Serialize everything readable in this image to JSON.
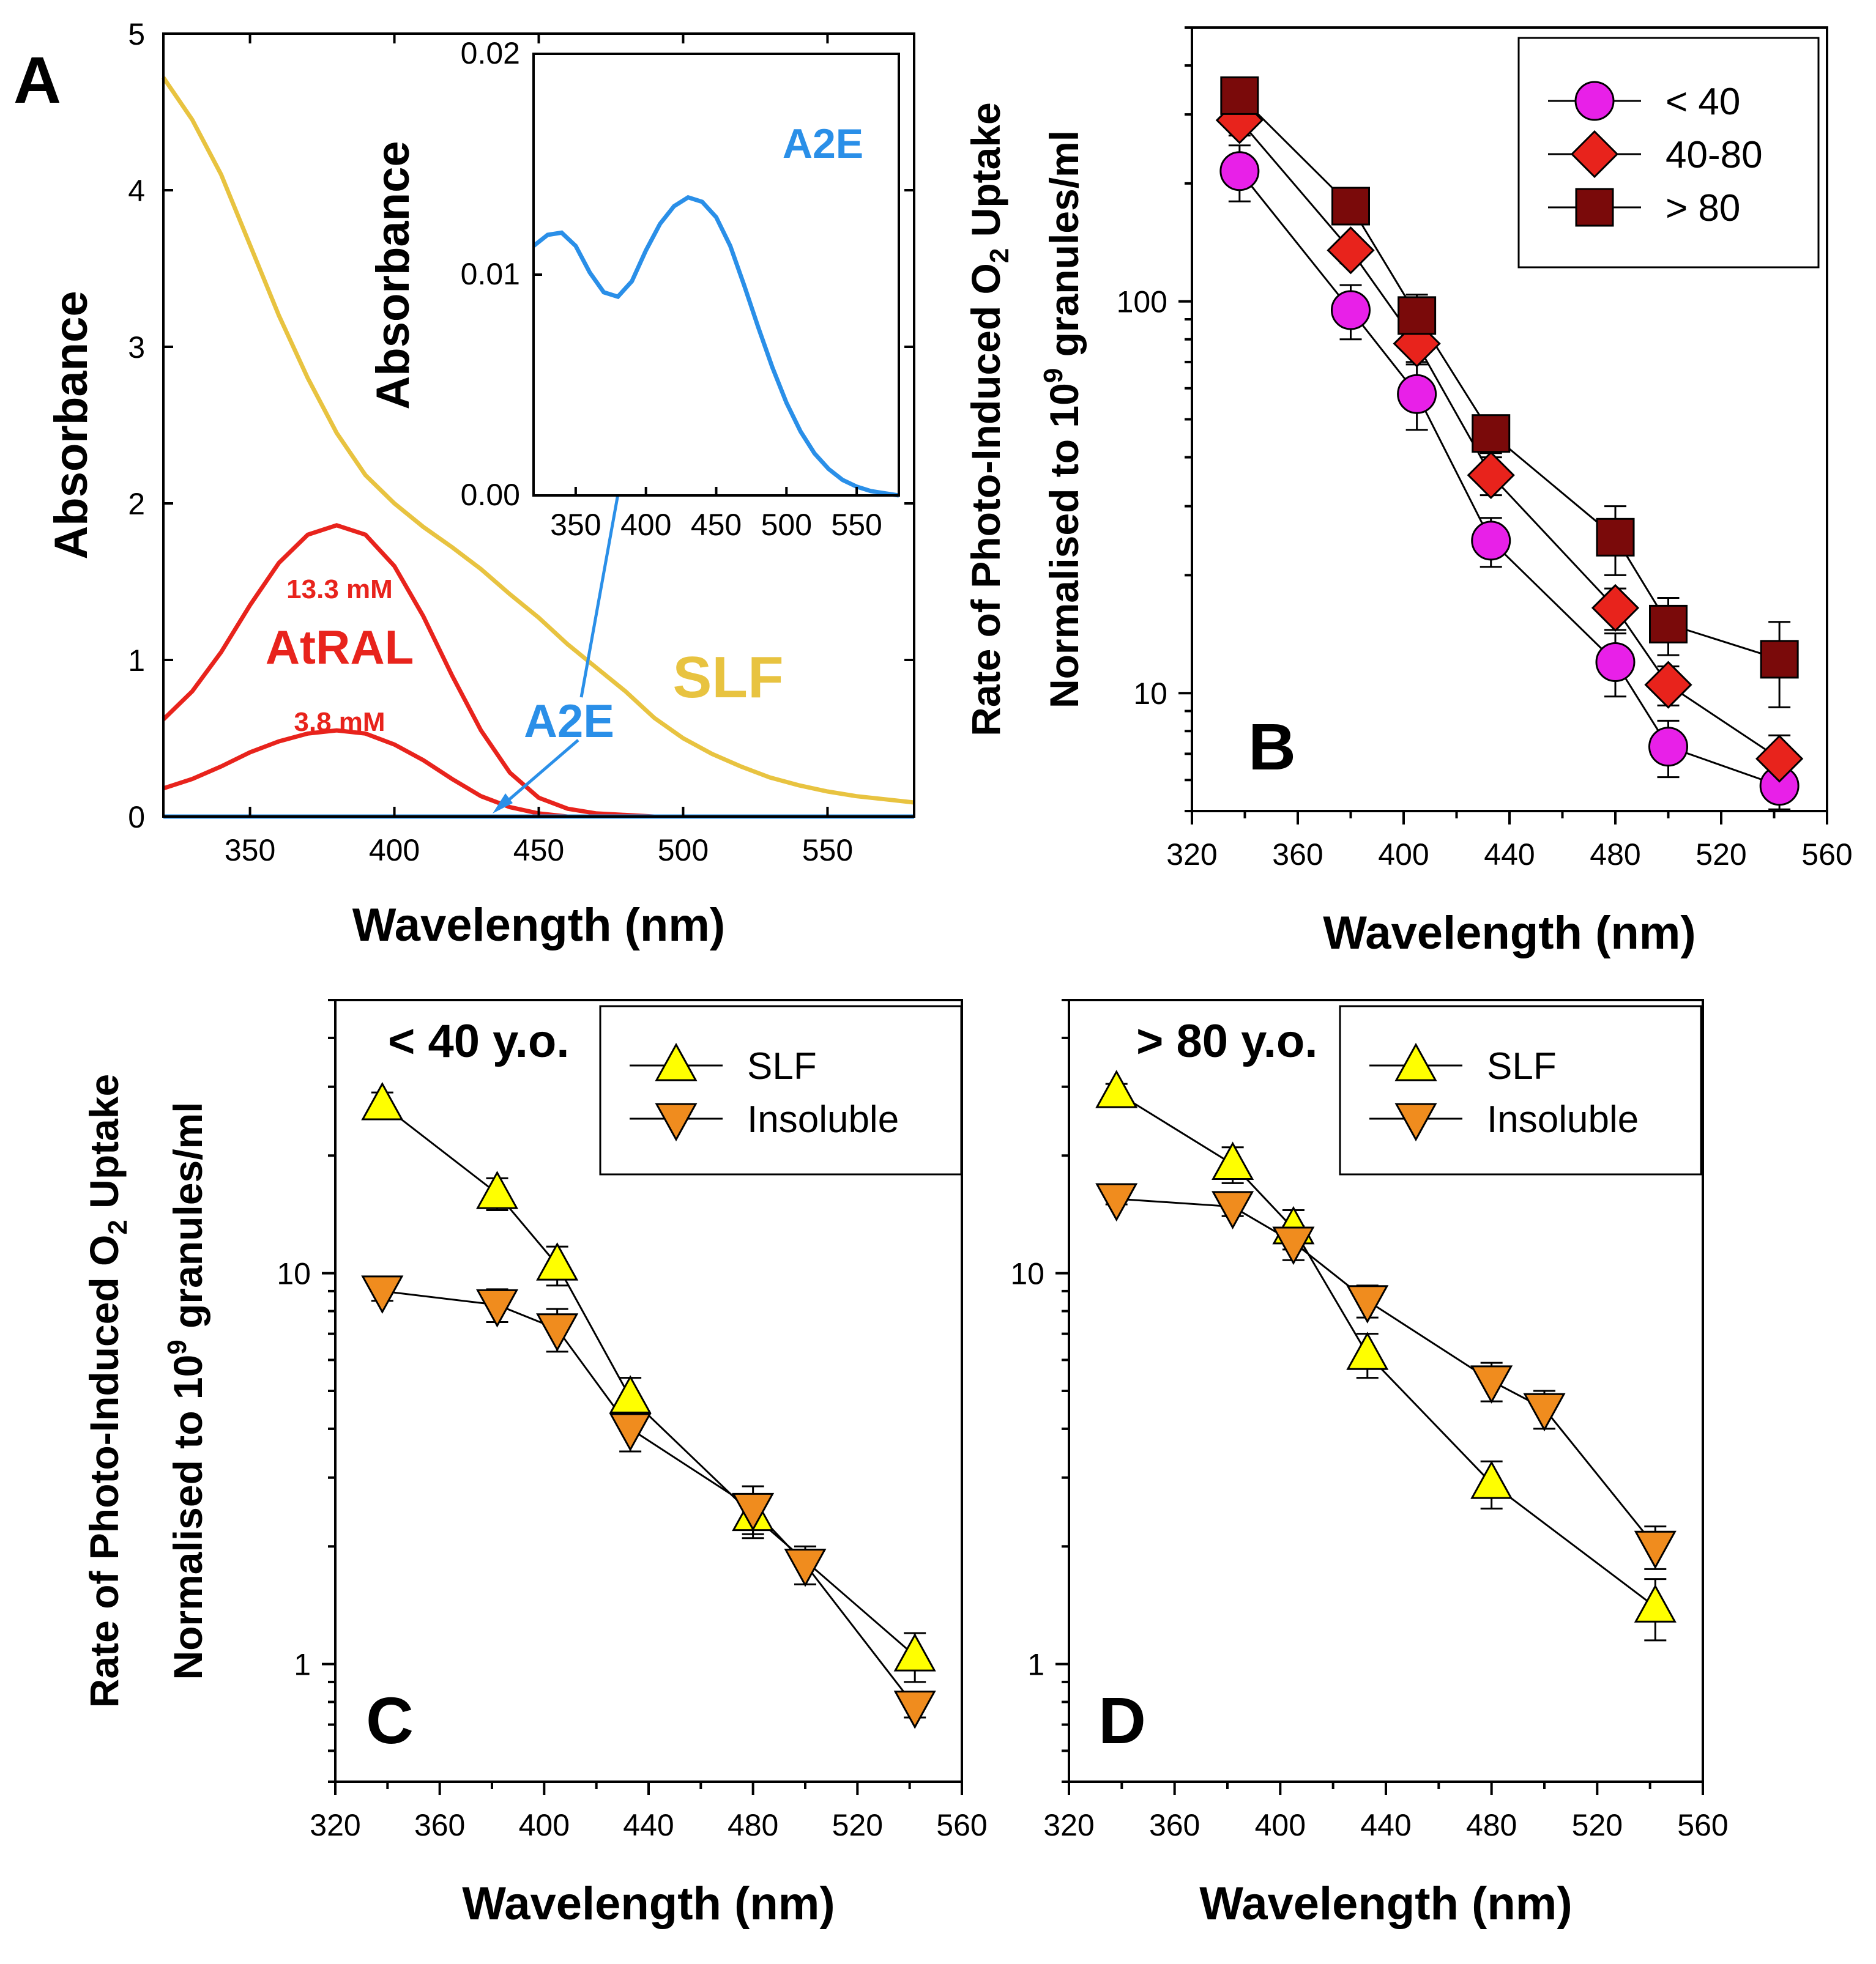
{
  "chart_data": [
    {
      "panel": "A",
      "type": "line",
      "xlabel": "Wavelength (nm)",
      "ylabel": "Absorbance",
      "xlim": [
        320,
        580
      ],
      "ylim": [
        0,
        5
      ],
      "xticks": [
        350,
        400,
        450,
        500,
        550
      ],
      "yticks": [
        0,
        1,
        2,
        3,
        4,
        5
      ],
      "series": [
        {
          "name": "SLF",
          "color": "#E8C340",
          "x": [
            320,
            330,
            340,
            350,
            360,
            370,
            380,
            390,
            400,
            410,
            420,
            430,
            440,
            450,
            460,
            470,
            480,
            490,
            500,
            510,
            520,
            530,
            540,
            550,
            560,
            570,
            580
          ],
          "y": [
            4.72,
            4.45,
            4.1,
            3.65,
            3.2,
            2.8,
            2.45,
            2.18,
            2.0,
            1.85,
            1.72,
            1.58,
            1.42,
            1.27,
            1.1,
            0.95,
            0.8,
            0.63,
            0.5,
            0.4,
            0.32,
            0.25,
            0.2,
            0.16,
            0.13,
            0.11,
            0.09
          ]
        },
        {
          "name": "AtRAL 13.3 mM",
          "color": "#E8231C",
          "x": [
            320,
            330,
            340,
            350,
            360,
            370,
            380,
            390,
            400,
            410,
            420,
            430,
            440,
            450,
            460,
            470,
            480,
            490
          ],
          "y": [
            0.62,
            0.8,
            1.05,
            1.35,
            1.62,
            1.8,
            1.86,
            1.8,
            1.6,
            1.28,
            0.9,
            0.55,
            0.28,
            0.12,
            0.05,
            0.02,
            0.01,
            0.0
          ]
        },
        {
          "name": "AtRAL 3.8 mM",
          "color": "#E8231C",
          "x": [
            320,
            330,
            340,
            350,
            360,
            370,
            380,
            390,
            400,
            410,
            420,
            430,
            440,
            450,
            460,
            470
          ],
          "y": [
            0.18,
            0.24,
            0.32,
            0.41,
            0.48,
            0.53,
            0.55,
            0.53,
            0.46,
            0.36,
            0.24,
            0.13,
            0.06,
            0.02,
            0.0,
            0.0
          ]
        },
        {
          "name": "A2E",
          "color": "#2A8FE8",
          "x": [
            320,
            580
          ],
          "y": [
            0.0,
            0.0
          ]
        }
      ],
      "annotations": [
        {
          "text": "13.3 mM",
          "color": "#E8231C"
        },
        {
          "text": "AtRAL",
          "color": "#E8231C"
        },
        {
          "text": "3.8 mM",
          "color": "#E8231C"
        },
        {
          "text": "SLF",
          "color": "#E8C340"
        },
        {
          "text": "A2E",
          "color": "#2A8FE8"
        }
      ],
      "inset": {
        "type": "line",
        "ylabel": "Absorbance",
        "xlim": [
          320,
          580
        ],
        "ylim": [
          0,
          0.02
        ],
        "xticks": [
          350,
          400,
          450,
          500,
          550
        ],
        "yticks": [
          0.0,
          0.01,
          0.02
        ],
        "ytick_labels": [
          "0.00",
          "0.01",
          "0.02"
        ],
        "label": "A2E",
        "color": "#2A8FE8",
        "x": [
          320,
          330,
          340,
          350,
          360,
          370,
          380,
          390,
          400,
          410,
          420,
          430,
          440,
          450,
          460,
          470,
          480,
          490,
          500,
          510,
          520,
          530,
          540,
          550,
          560,
          570,
          580
        ],
        "y": [
          0.0113,
          0.0118,
          0.0119,
          0.0113,
          0.0101,
          0.0092,
          0.009,
          0.0097,
          0.0111,
          0.0123,
          0.0131,
          0.0135,
          0.0133,
          0.0126,
          0.0113,
          0.0095,
          0.0076,
          0.0058,
          0.0042,
          0.0029,
          0.0019,
          0.0012,
          0.0007,
          0.0004,
          0.0002,
          0.0001,
          0.0
        ]
      }
    },
    {
      "panel": "B",
      "type": "scatter",
      "yscale": "log",
      "xlabel": "Wavelength (nm)",
      "ylabel_line1": "Rate of Photo-Induced O",
      "ylabel_sub": "2",
      "ylabel_line1_tail": " Uptake",
      "ylabel_line2": "Normalised to 10",
      "ylabel_sup": "9",
      "ylabel_line2_tail": " granules/ml",
      "xlim": [
        320,
        560
      ],
      "ylim": [
        5,
        500
      ],
      "xticks": [
        320,
        360,
        400,
        440,
        480,
        520,
        560
      ],
      "yticks": [
        10,
        100
      ],
      "legend_position": "top-right",
      "x": [
        338,
        380,
        405,
        433,
        480,
        500,
        542
      ],
      "series": [
        {
          "name": "< 40",
          "marker": "circle",
          "color": "#E820E8",
          "values": [
            215,
            95,
            58,
            24.5,
            12,
            7.3,
            5.8
          ],
          "errors": [
            35,
            15,
            11,
            3.5,
            2.2,
            1.2,
            0.8
          ]
        },
        {
          "name": "40-80",
          "marker": "diamond",
          "color": "#E8231C",
          "values": [
            290,
            135,
            78,
            36,
            16.5,
            10.5,
            6.8
          ],
          "errors": [
            25,
            10,
            8,
            4,
            2,
            1.2,
            1.0
          ]
        },
        {
          "name": "> 80",
          "marker": "square",
          "color": "#7A0A0A",
          "values": [
            335,
            175,
            92,
            46,
            25,
            15,
            12.2
          ],
          "errors": [
            30,
            15,
            12,
            5,
            5,
            2.5,
            3
          ]
        }
      ]
    },
    {
      "panel": "C",
      "type": "scatter",
      "yscale": "log",
      "title": "< 40 y.o.",
      "xlabel": "Wavelength (nm)",
      "ylabel_line1": "Rate of Photo-Induced O",
      "ylabel_sub": "2",
      "ylabel_line1_tail": " Uptake",
      "ylabel_line2": "Normalised to 10",
      "ylabel_sup": "9",
      "ylabel_line2_tail": " granules/ml",
      "xlim": [
        320,
        560
      ],
      "ylim": [
        0.5,
        50
      ],
      "xticks": [
        320,
        360,
        400,
        440,
        480,
        520,
        560
      ],
      "yticks": [
        1,
        10
      ],
      "legend_position": "top-right",
      "series": [
        {
          "name": "SLF",
          "marker": "triangle-up",
          "color": "#FFFF00",
          "x": [
            338,
            382,
            405,
            433,
            480,
            542
          ],
          "values": [
            27,
            16,
            10.5,
            4.8,
            2.4,
            1.05
          ],
          "errors": [
            2,
            1.5,
            1.2,
            0.6,
            0.3,
            0.15
          ]
        },
        {
          "name": "Insoluble",
          "marker": "triangle-down",
          "color": "#F08C1E",
          "x": [
            338,
            382,
            405,
            433,
            480,
            500,
            542
          ],
          "values": [
            9.0,
            8.3,
            7.2,
            4.0,
            2.5,
            1.8,
            0.78
          ],
          "errors": [
            0.5,
            0.8,
            0.9,
            0.5,
            0.35,
            0.2,
            0.05
          ]
        }
      ]
    },
    {
      "panel": "D",
      "type": "scatter",
      "yscale": "log",
      "title": "> 80 y.o.",
      "xlabel": "Wavelength (nm)",
      "xlim": [
        320,
        560
      ],
      "ylim": [
        0.5,
        50
      ],
      "xticks": [
        320,
        360,
        400,
        440,
        480,
        520,
        560
      ],
      "yticks": [
        1,
        10
      ],
      "legend_position": "top-right",
      "series": [
        {
          "name": "SLF",
          "marker": "triangle-up",
          "color": "#FFFF00",
          "x": [
            338,
            382,
            405,
            433,
            480,
            542
          ],
          "values": [
            29,
            19,
            13,
            6.2,
            2.9,
            1.4
          ],
          "errors": [
            1.5,
            2,
            1.5,
            0.8,
            0.4,
            0.25
          ]
        },
        {
          "name": "Insoluble",
          "marker": "triangle-down",
          "color": "#F08C1E",
          "x": [
            338,
            382,
            405,
            433,
            480,
            500,
            542
          ],
          "values": [
            15.5,
            14.8,
            12,
            8.5,
            5.3,
            4.5,
            2.0
          ],
          "errors": [
            0.5,
            0.8,
            1.2,
            0.8,
            0.6,
            0.5,
            0.25
          ]
        }
      ]
    }
  ]
}
